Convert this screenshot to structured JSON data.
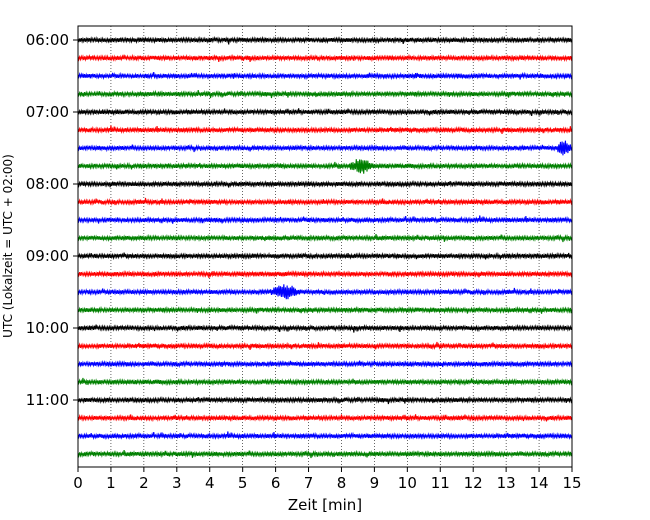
{
  "chart_data": {
    "type": "line",
    "title": "",
    "xlabel": "Zeit  [min]",
    "ylabel": "UTC (Lokalzeit = UTC + 02:00)",
    "xlim": [
      0,
      15
    ],
    "x_ticks": [
      "0",
      "1",
      "2",
      "3",
      "4",
      "5",
      "6",
      "7",
      "8",
      "9",
      "10",
      "11",
      "12",
      "13",
      "14",
      "15"
    ],
    "y_ticks": [
      "06:00",
      "07:00",
      "08:00",
      "09:00",
      "10:00",
      "11:00"
    ],
    "grid": "vertical dotted lines at each minute",
    "trace_interval_minutes": 15,
    "trace_color_cycle": [
      "#000000",
      "#ff0000",
      "#0000ff",
      "#008000"
    ],
    "traces": [
      {
        "start": "06:00",
        "color": "#000000"
      },
      {
        "start": "06:15",
        "color": "#ff0000"
      },
      {
        "start": "06:30",
        "color": "#0000ff"
      },
      {
        "start": "06:45",
        "color": "#008000"
      },
      {
        "start": "07:00",
        "color": "#000000"
      },
      {
        "start": "07:15",
        "color": "#ff0000"
      },
      {
        "start": "07:30",
        "color": "#0000ff"
      },
      {
        "start": "07:45",
        "color": "#008000"
      },
      {
        "start": "08:00",
        "color": "#000000"
      },
      {
        "start": "08:15",
        "color": "#ff0000"
      },
      {
        "start": "08:30",
        "color": "#0000ff"
      },
      {
        "start": "08:45",
        "color": "#008000"
      },
      {
        "start": "09:00",
        "color": "#000000"
      },
      {
        "start": "09:15",
        "color": "#ff0000"
      },
      {
        "start": "09:30",
        "color": "#0000ff"
      },
      {
        "start": "09:45",
        "color": "#008000"
      },
      {
        "start": "10:00",
        "color": "#000000"
      },
      {
        "start": "10:15",
        "color": "#ff0000"
      },
      {
        "start": "10:30",
        "color": "#0000ff"
      },
      {
        "start": "10:45",
        "color": "#008000"
      },
      {
        "start": "11:00",
        "color": "#000000"
      },
      {
        "start": "11:15",
        "color": "#ff0000"
      },
      {
        "start": "11:30",
        "color": "#0000ff"
      },
      {
        "start": "11:45",
        "color": "#008000"
      }
    ],
    "notable_events": [
      {
        "trace": "07:45",
        "x_min": [
          8.2,
          9.0
        ],
        "description_color": "#008000"
      },
      {
        "trace": "07:30",
        "x_min": [
          14.5,
          15.0
        ],
        "description_color": "#0000ff"
      },
      {
        "trace": "09:30",
        "x_min": [
          5.8,
          6.8
        ],
        "description_color": "#0000ff"
      }
    ]
  }
}
